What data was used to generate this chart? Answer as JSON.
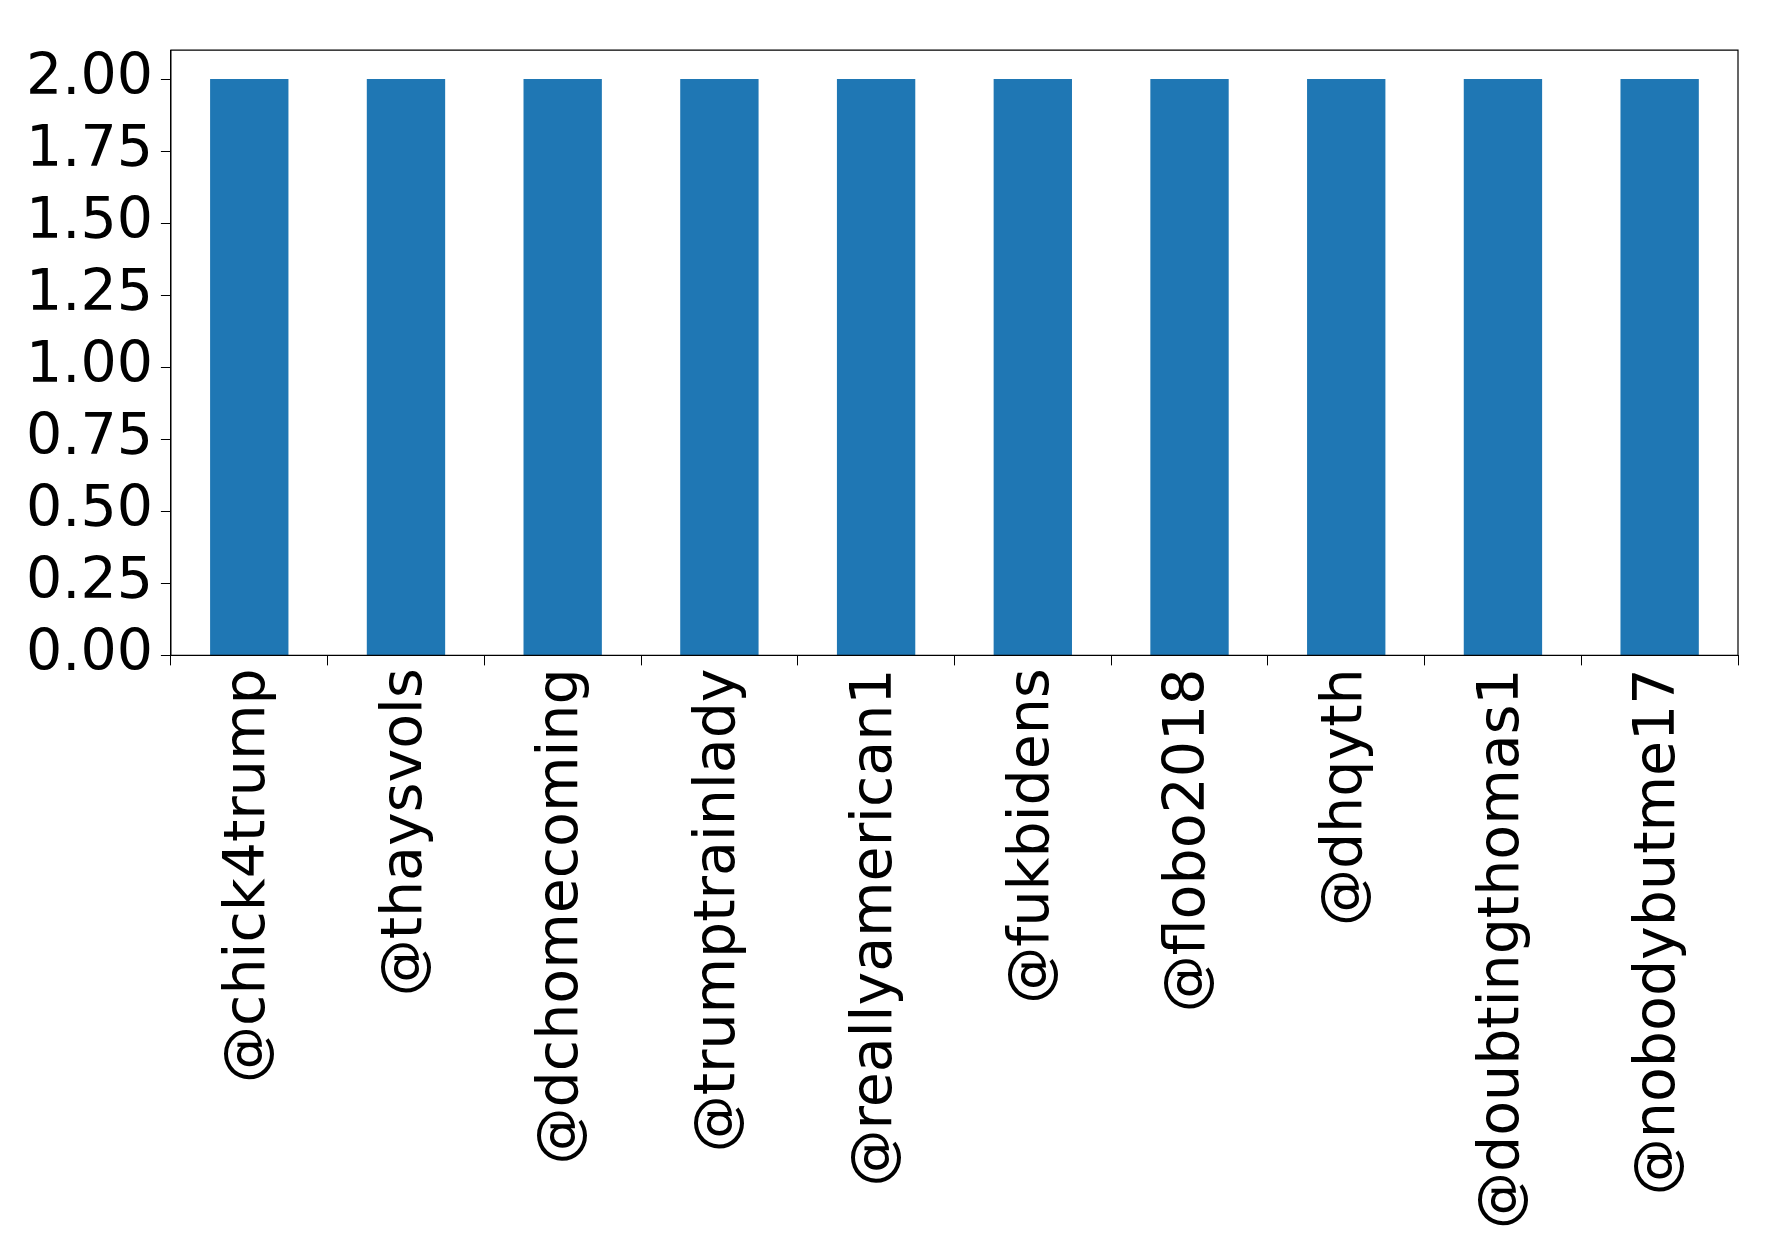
{
  "chart_data": {
    "type": "bar",
    "categories": [
      "@chick4trump",
      "@thaysvols",
      "@dchomecoming",
      "@trumptrainlady",
      "@reallyamerican1",
      "@fukbidens",
      "@flobo2018",
      "@dhqyth",
      "@doubtingthomas1",
      "@nobodybutme17"
    ],
    "values": [
      2,
      2,
      2,
      2,
      2,
      2,
      2,
      2,
      2,
      2
    ],
    "color": "#1f77b4",
    "ylim": [
      0,
      2.1
    ],
    "yticks": [
      {
        "value": 0,
        "label": "0.00"
      },
      {
        "value": 0.25,
        "label": "0.25"
      },
      {
        "value": 0.5,
        "label": "0.50"
      },
      {
        "value": 0.75,
        "label": "0.75"
      },
      {
        "value": 1,
        "label": "1.00"
      },
      {
        "value": 1.25,
        "label": "1.25"
      },
      {
        "value": 1.5,
        "label": "1.50"
      },
      {
        "value": 1.75,
        "label": "1.75"
      },
      {
        "value": 2,
        "label": "2.00"
      }
    ]
  }
}
